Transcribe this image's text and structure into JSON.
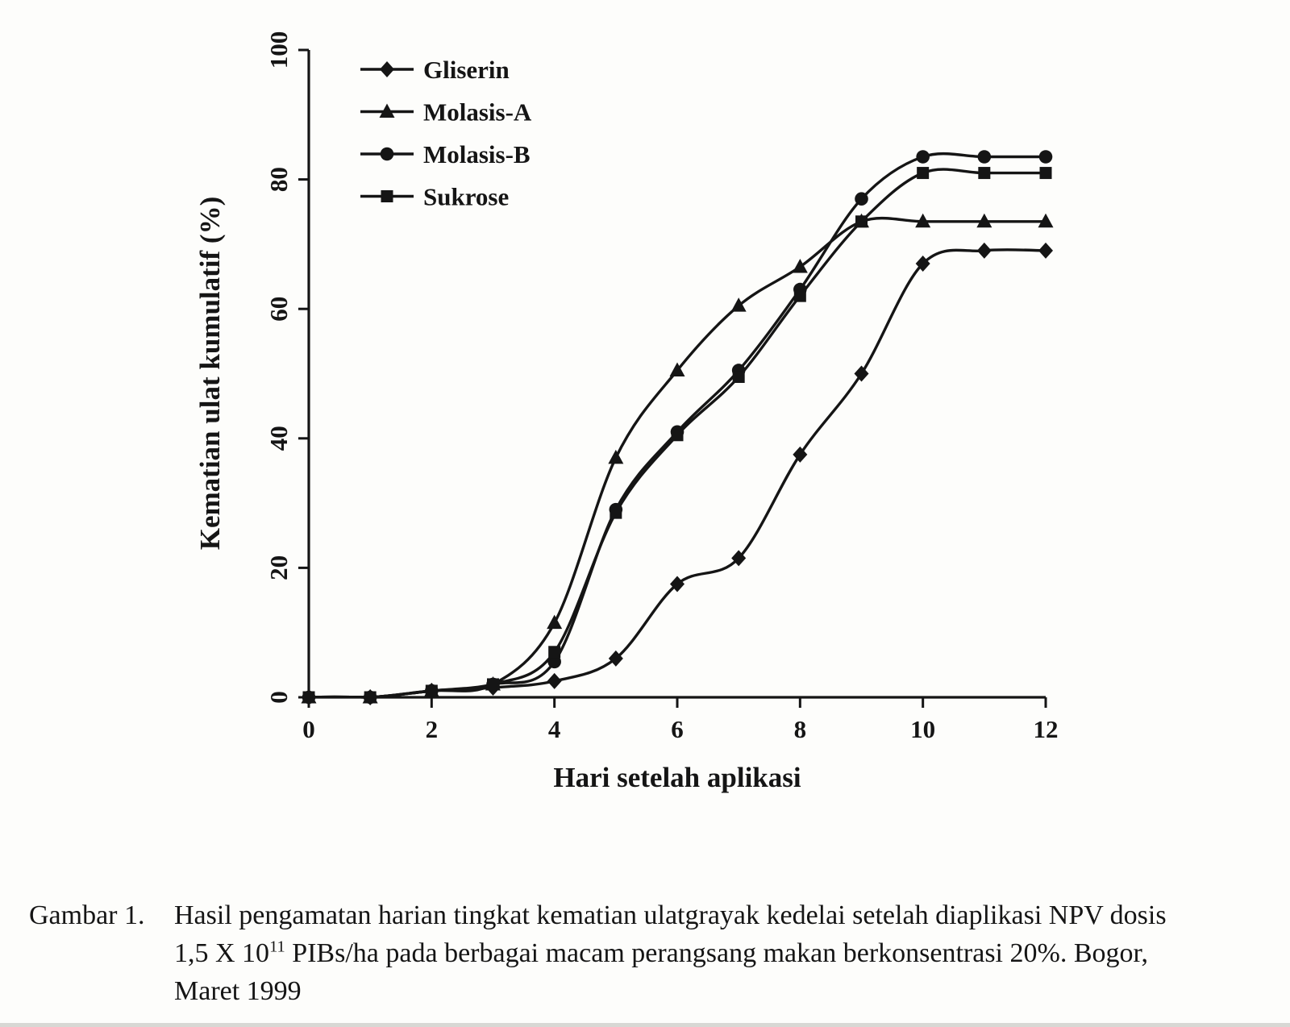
{
  "figure": {
    "caption": {
      "label": "Gambar 1.",
      "line1": "Hasil pengamatan harian tingkat kematian ulatgrayak kedelai setelah diaplikasi NPV dosis",
      "line2_pre": "1,5 X 10",
      "line2_sup": "11",
      "line2_post": " PIBs/ha pada berbagai macam perangsang makan berkonsentrasi 20%. Bogor,",
      "line3": "Maret 1999"
    }
  },
  "chart_data": {
    "type": "line",
    "title": "",
    "xlabel": "Hari setelah aplikasi",
    "ylabel": "Kematian ulat kumulatif (%)",
    "xlim": [
      0,
      12
    ],
    "ylim": [
      0,
      100
    ],
    "x_ticks": [
      0,
      2,
      4,
      6,
      8,
      10,
      12
    ],
    "y_ticks": [
      0,
      20,
      40,
      60,
      80,
      100
    ],
    "grid": false,
    "legend_position": "inside-top-left",
    "ink_color": "#151515",
    "x": [
      0,
      1,
      2,
      3,
      4,
      5,
      6,
      7,
      8,
      9,
      10,
      11,
      12
    ],
    "series": [
      {
        "name": "Gliserin",
        "marker": "diamond",
        "values": [
          0,
          0,
          1,
          1.5,
          2.5,
          6,
          17.5,
          21.5,
          37.5,
          50,
          67,
          69,
          69
        ]
      },
      {
        "name": "Molasis-A",
        "marker": "triangle",
        "values": [
          0,
          0,
          1,
          2,
          11.5,
          37,
          50.5,
          60.5,
          66.5,
          73.5,
          73.5,
          73.5,
          73.5
        ]
      },
      {
        "name": "Molasis-B",
        "marker": "circle",
        "values": [
          0,
          0,
          1,
          2,
          5.5,
          29,
          41,
          50.5,
          63,
          77,
          83.5,
          83.5,
          83.5
        ]
      },
      {
        "name": "Sukrose",
        "marker": "square",
        "values": [
          0,
          0,
          1,
          2,
          7,
          28.5,
          40.5,
          49.5,
          62,
          73.5,
          81,
          81,
          81
        ]
      }
    ]
  }
}
